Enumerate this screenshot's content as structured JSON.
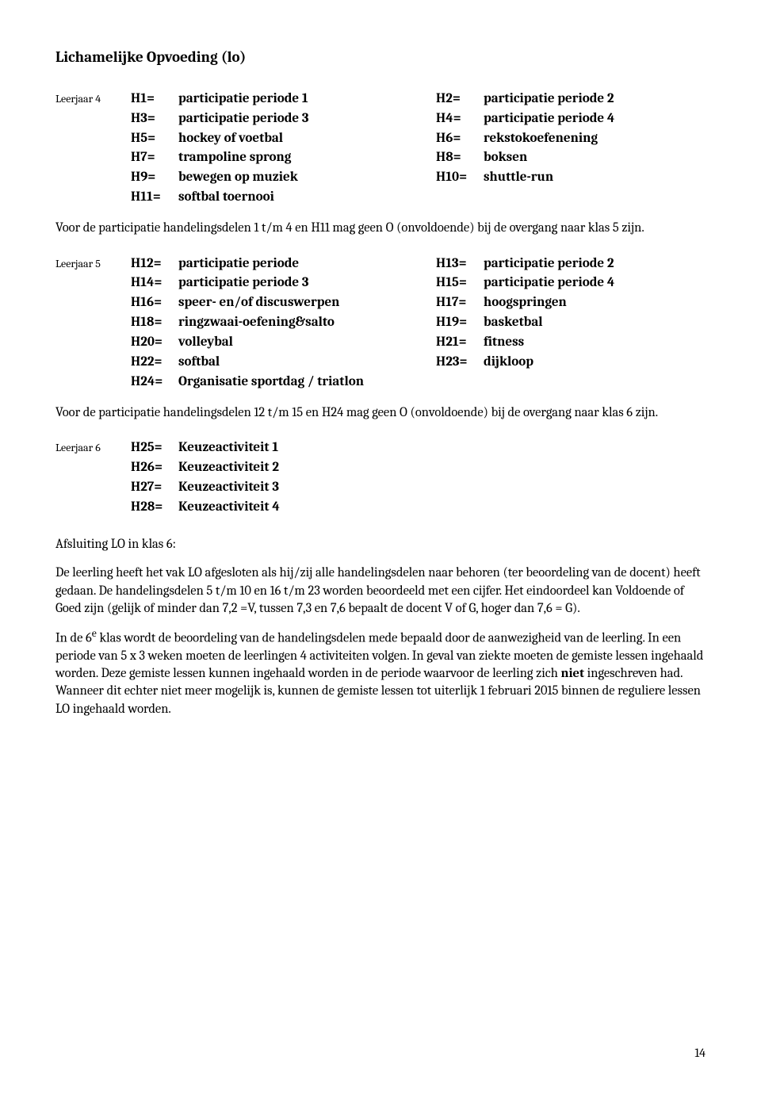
{
  "title": "Lichamelijke Opvoeding (lo)",
  "block1": {
    "year": "Leerjaar 4",
    "left": [
      {
        "code": "H1=",
        "desc": "participatie periode 1"
      },
      {
        "code": "H3=",
        "desc": "participatie periode 3"
      },
      {
        "code": "H5=",
        "desc": "hockey of voetbal"
      },
      {
        "code": "H7=",
        "desc": "trampoline sprong"
      },
      {
        "code": "H9=",
        "desc": "bewegen op muziek"
      },
      {
        "code": "H11=",
        "desc": "softbal toernooi"
      }
    ],
    "right": [
      {
        "code": "H2=",
        "desc": "participatie periode 2"
      },
      {
        "code": "H4=",
        "desc": "participatie periode 4"
      },
      {
        "code": "H6=",
        "desc": "rekstokoefenening"
      },
      {
        "code": "H8=",
        "desc": "boksen"
      },
      {
        "code": "H10=",
        "desc": "shuttle-run"
      }
    ]
  },
  "para1": "Voor de participatie handelingsdelen 1 t/m 4 en H11 mag geen O (onvoldoende) bij de overgang naar klas 5 zijn.",
  "block2": {
    "year": "Leerjaar 5",
    "left": [
      {
        "code": "H12=",
        "desc": "participatie periode"
      },
      {
        "code": "H14=",
        "desc": "participatie periode 3"
      },
      {
        "code": "H16=",
        "desc": "speer- en/of discuswerpen"
      },
      {
        "code": "H18=",
        "desc": "ringzwaai-oefening&salto"
      },
      {
        "code": "H20=",
        "desc": "volleybal"
      },
      {
        "code": "H22=",
        "desc": "softbal"
      },
      {
        "code": "H24=",
        "desc": "Organisatie sportdag / triatlon"
      }
    ],
    "right": [
      {
        "code": "H13=",
        "desc": "participatie periode 2"
      },
      {
        "code": "H15=",
        "desc": "participatie periode 4"
      },
      {
        "code": "H17=",
        "desc": "hoogspringen"
      },
      {
        "code": "H19=",
        "desc": "basketbal"
      },
      {
        "code": "H21=",
        "desc": "fitness"
      },
      {
        "code": "H23=",
        "desc": "dijkloop"
      }
    ]
  },
  "para2": "Voor de participatie handelingsdelen 12 t/m 15 en H24 mag geen O (onvoldoende) bij de overgang naar klas 6 zijn.",
  "block3": {
    "year": "Leerjaar 6",
    "left": [
      {
        "code": "H25=",
        "desc": "Keuzeactiviteit 1"
      },
      {
        "code": "H26=",
        "desc": "Keuzeactiviteit 2"
      },
      {
        "code": "H27=",
        "desc": "Keuzeactiviteit 3"
      },
      {
        "code": "H28=",
        "desc": "Keuzeactiviteit 4"
      }
    ]
  },
  "subhead": "Afsluiting LO in klas 6:",
  "para3a": "De leerling heeft het vak LO afgesloten als hij/zij alle handelingsdelen naar behoren (ter beoordeling van de docent) heeft gedaan. De handelingsdelen 5 t/m 10 en 16 t/m 23 worden beoordeeld met een cijfer. Het eindoordeel kan Voldoende of Goed zijn (gelijk of minder dan 7,2 =V, tussen 7,3 en 7,6 bepaalt de docent V of G, hoger dan 7,6 = G).",
  "para3b_pre": "In de 6",
  "para3b_sup": "e",
  "para3b_mid": " klas wordt de beoordeling van de handelingsdelen mede bepaald door de aanwezigheid van de leerling. In een periode van 5 x 3 weken moeten de leerlingen 4 activiteiten volgen. In geval van ziekte moeten de gemiste lessen ingehaald worden. Deze gemiste lessen kunnen ingehaald worden in de periode waarvoor de leerling zich ",
  "para3b_bold": "niet",
  "para3b_post": " ingeschreven had. Wanneer dit echter niet meer mogelijk is, kunnen de gemiste lessen tot uiterlijk 1 februari  2015 binnen de reguliere lessen LO ingehaald worden.",
  "page_number": "14"
}
